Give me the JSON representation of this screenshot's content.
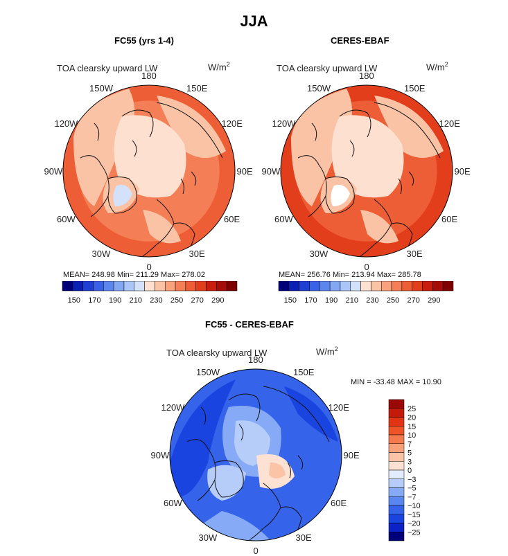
{
  "title": "JJA",
  "units_base": "W/m",
  "units_exp": "2",
  "panels": {
    "fc55": {
      "title": "FC55 (yrs 1-4)",
      "variable": "TOA clearsky upward LW",
      "stats": "MEAN= 248.98   Min= 211.29   Max= 278.02"
    },
    "ceres": {
      "title": "CERES-EBAF",
      "variable": "TOA clearsky upward LW",
      "stats": "MEAN= 256.76   Min= 213.94   Max= 285.78"
    },
    "diff": {
      "title": "FC55 - CERES-EBAF",
      "variable": "TOA clearsky upward LW",
      "stats": "MIN = -33.48  MAX =   10.90"
    }
  },
  "longitude_labels": [
    "180",
    "150E",
    "120E",
    "90E",
    "60E",
    "30E",
    "0",
    "30W",
    "60W",
    "90W",
    "120W",
    "150W"
  ],
  "colorbar_abs": {
    "colors": [
      "#00007a",
      "#0a1fb4",
      "#1f3fd2",
      "#3a62e6",
      "#5b86ee",
      "#82a8f4",
      "#aac6f8",
      "#d3e1fb",
      "#fde0d0",
      "#fbc3a6",
      "#f8a17c",
      "#f47f56",
      "#ee5e36",
      "#e33e1c",
      "#c81e10",
      "#a60c08",
      "#7e0000"
    ],
    "labels": [
      "150",
      "170",
      "190",
      "210",
      "230",
      "250",
      "270",
      "290"
    ]
  },
  "colorbar_diff": {
    "colors": [
      "#00007a",
      "#0a22c6",
      "#1a44e0",
      "#3563ea",
      "#5a86f0",
      "#86aaf5",
      "#b7cdf9",
      "#e2ecfc",
      "#fde2d4",
      "#fbc4a6",
      "#f8a07a",
      "#f47a4e",
      "#ee5428",
      "#e03414",
      "#c41a0c",
      "#9a0806"
    ],
    "labels": [
      "25",
      "20",
      "15",
      "10",
      "7",
      "5",
      "3",
      "0",
      "−3",
      "−5",
      "−7",
      "−10",
      "−15",
      "−20",
      "−25"
    ]
  },
  "map_colors": {
    "fc55_ocean": "#f47f56",
    "fc55_outer": "#ee5e36",
    "fc55_land": "#fbc3a6",
    "fc55_arctic": "#fde0d0",
    "fc55_greenland": "#d3e1fb",
    "ceres_ocean": "#ee5e36",
    "ceres_outer": "#e33e1c",
    "ceres_land": "#fbc3a6",
    "ceres_arctic": "#fde0d0",
    "ceres_greenland": "#ffffff",
    "diff_base": "#3563ea",
    "diff_light": "#86aaf5",
    "diff_pale": "#b7cdf9",
    "diff_dark": "#1a44e0",
    "diff_warm": "#fde2d4",
    "diff_warm2": "#fbc4a6"
  }
}
